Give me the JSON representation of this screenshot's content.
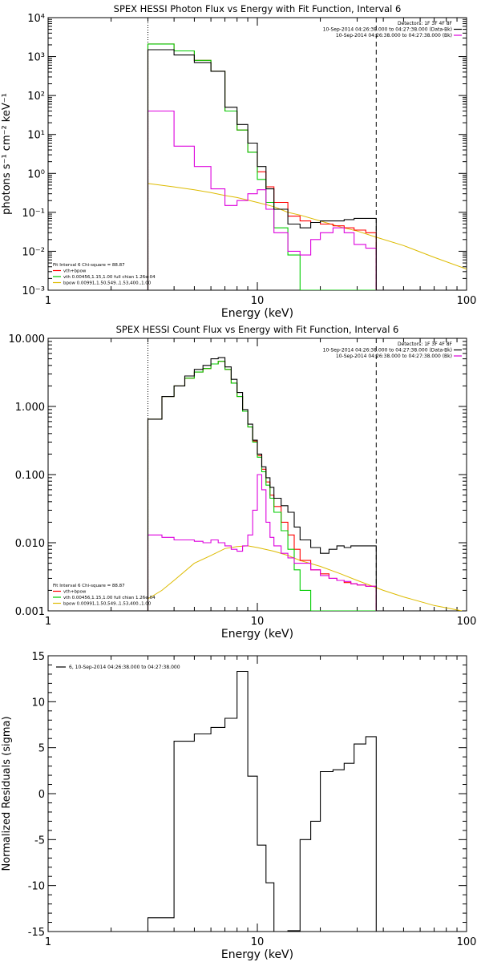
{
  "colors": {
    "data": "#000000",
    "total": "#ff0000",
    "vth": "#00cc00",
    "bpow": "#ddbb00",
    "bkg": "#dd00dd",
    "frame": "#000000"
  },
  "chart_data": [
    {
      "type": "line",
      "title": "SPEX HESSI Photon Flux vs Energy with Fit Function, Interval 6",
      "xlabel": "Energy (keV)",
      "ylabel": "photons s⁻¹ cm⁻² keV⁻¹",
      "xscale": "log",
      "yscale": "log",
      "xlim": [
        1,
        100
      ],
      "ylim": [
        0.001,
        10000
      ],
      "xticks": [
        {
          "v": 1,
          "label": "1"
        },
        {
          "v": 10,
          "label": "10"
        },
        {
          "v": 100,
          "label": "100"
        }
      ],
      "yticks": [
        {
          "v": 0.001,
          "label": "10⁻³"
        },
        {
          "v": 0.01,
          "label": "10⁻²"
        },
        {
          "v": 0.1,
          "label": "10⁻¹"
        },
        {
          "v": 1,
          "label": "10⁰"
        },
        {
          "v": 10,
          "label": "10¹"
        },
        {
          "v": 100,
          "label": "10²"
        },
        {
          "v": 1000,
          "label": "10³"
        },
        {
          "v": 10000,
          "label": "10⁴"
        }
      ],
      "legend_tr": [
        "Detectors: 1F 3F 4F 8F",
        "10-Sep-2014 04:26:38.000 to 04:27:38.000 (Data-Bk)",
        "10-Sep-2014 04:26:38.000 to 04:27:38.000 (Bk)"
      ],
      "legend_bl": [
        "Fit Interval 6   Chi-square = 88.87",
        "vth+bpow",
        "vth 0.00456,1.15,1.00  full chian 1.26e-04",
        "bpow 0.00991,1.50,549.,1.53,400.,1.00"
      ],
      "vlines": [
        3.0,
        37.0
      ],
      "edges": [
        3.0,
        4.0,
        5.0,
        6.0,
        7.0,
        8.0,
        9.0,
        10.0,
        11.0,
        12.0,
        14.0,
        16.0,
        18.0,
        20.0,
        23.0,
        26.0,
        29.0,
        33.0,
        37.0
      ],
      "series": [
        {
          "name": "Data-Bk",
          "color": "data",
          "values": [
            1500,
            1100,
            700,
            420,
            50,
            18,
            6,
            1.5,
            0.4,
            0.12,
            0.05,
            0.04,
            0.055,
            0.06,
            0.06,
            0.065,
            0.07,
            0.07
          ]
        },
        {
          "name": "vth+bpow",
          "color": "total",
          "values": [
            2100,
            1400,
            800,
            420,
            40,
            13,
            3.5,
            1.1,
            0.45,
            0.18,
            0.08,
            0.06,
            0.055,
            0.05,
            0.045,
            0.04,
            0.035,
            0.03
          ]
        },
        {
          "name": "vth",
          "color": "vth",
          "values": [
            2100,
            1400,
            800,
            420,
            40,
            13,
            3.5,
            0.7,
            0.18,
            0.04,
            0.008,
            0.0009,
            0.0009,
            0.0009,
            0.0009,
            0.0009,
            0.0009,
            0.0009
          ]
        },
        {
          "name": "Bk",
          "color": "bkg",
          "values": [
            40,
            5,
            1.5,
            0.4,
            0.15,
            0.2,
            0.3,
            0.38,
            0.12,
            0.03,
            0.01,
            0.008,
            0.02,
            0.03,
            0.04,
            0.03,
            0.015,
            0.012
          ]
        }
      ],
      "curve": {
        "name": "bpow",
        "color": "bpow",
        "x": [
          3,
          4,
          5,
          6,
          7,
          8,
          10,
          12,
          14,
          16,
          20,
          25,
          30,
          37,
          50,
          70,
          100
        ],
        "y": [
          0.55,
          0.45,
          0.38,
          0.32,
          0.27,
          0.24,
          0.18,
          0.14,
          0.1,
          0.085,
          0.06,
          0.042,
          0.033,
          0.023,
          0.014,
          0.007,
          0.0035
        ]
      }
    },
    {
      "type": "line",
      "title": "SPEX HESSI Count Flux vs Energy with Fit Function, Interval 6",
      "xlabel": "Energy (keV)",
      "ylabel": "",
      "xscale": "log",
      "yscale": "log",
      "xlim": [
        1,
        100
      ],
      "ylim": [
        0.001,
        10
      ],
      "xticks": [
        {
          "v": 1,
          "label": "1"
        },
        {
          "v": 10,
          "label": "10"
        },
        {
          "v": 100,
          "label": "100"
        }
      ],
      "yticks": [
        {
          "v": 0.001,
          "label": "0.001"
        },
        {
          "v": 0.01,
          "label": "0.010"
        },
        {
          "v": 0.1,
          "label": "0.100"
        },
        {
          "v": 1,
          "label": "1.000"
        },
        {
          "v": 10,
          "label": "10.000"
        }
      ],
      "legend_tr": [
        "Detectors: 1F 3F 4F 8F",
        "10-Sep-2014 04:26:38.000 to 04:27:38.000 (Data-Bk)",
        "10-Sep-2014 04:26:38.000 to 04:27:38.000 (Bk)"
      ],
      "legend_bl": [
        "Fit Interval 6   Chi-square = 88.87",
        "vth+bpow",
        "vth 0.00456,1.15,1.00  full chian 1.26e-04",
        "bpow 0.00991,1.50,549.,1.53,400.,1.00"
      ],
      "vlines": [
        3.0,
        37.0
      ],
      "edges": [
        3.0,
        3.5,
        4.0,
        4.5,
        5.0,
        5.5,
        6.0,
        6.5,
        7.0,
        7.5,
        8.0,
        8.5,
        9.0,
        9.5,
        10.0,
        10.5,
        11.0,
        11.5,
        12.0,
        13.0,
        14.0,
        15.0,
        16.0,
        18.0,
        20.0,
        22.0,
        24.0,
        26.0,
        28.0,
        30.0,
        33.0,
        37.0
      ],
      "series": [
        {
          "name": "Data-Bk",
          "color": "data",
          "values": [
            0.65,
            1.4,
            2.0,
            2.8,
            3.5,
            4.0,
            5.0,
            5.2,
            3.8,
            2.5,
            1.6,
            0.9,
            0.55,
            0.32,
            0.2,
            0.13,
            0.09,
            0.065,
            0.045,
            0.035,
            0.028,
            0.017,
            0.011,
            0.0085,
            0.007,
            0.008,
            0.009,
            0.0085,
            0.009,
            0.009,
            0.009
          ]
        },
        {
          "name": "vth+bpow",
          "color": "total",
          "values": [
            0.65,
            1.4,
            2.0,
            2.6,
            3.2,
            3.6,
            4.2,
            4.6,
            3.5,
            2.2,
            1.4,
            0.85,
            0.5,
            0.31,
            0.19,
            0.12,
            0.078,
            0.05,
            0.034,
            0.02,
            0.013,
            0.008,
            0.0055,
            0.004,
            0.0035,
            0.003,
            0.0028,
            0.0026,
            0.0025,
            0.0024,
            0.0023
          ]
        },
        {
          "name": "vth",
          "color": "vth",
          "values": [
            0.65,
            1.4,
            2.0,
            2.6,
            3.2,
            3.6,
            4.2,
            4.6,
            3.5,
            2.2,
            1.4,
            0.85,
            0.5,
            0.3,
            0.18,
            0.11,
            0.07,
            0.045,
            0.028,
            0.015,
            0.008,
            0.004,
            0.002,
            0.0009,
            0.0009,
            0.0009,
            0.0009,
            0.0009,
            0.0009,
            0.0009,
            0.0009
          ]
        },
        {
          "name": "Bk",
          "color": "bkg",
          "values": [
            0.013,
            0.012,
            0.011,
            0.011,
            0.0105,
            0.01,
            0.011,
            0.01,
            0.009,
            0.008,
            0.0075,
            0.009,
            0.013,
            0.03,
            0.1,
            0.06,
            0.02,
            0.012,
            0.009,
            0.007,
            0.006,
            0.005,
            0.005,
            0.004,
            0.0033,
            0.003,
            0.0028,
            0.0027,
            0.0025,
            0.0024,
            0.0023
          ]
        }
      ],
      "curve": {
        "name": "bpow",
        "color": "bpow",
        "x": [
          3,
          3.5,
          4,
          5,
          6,
          7,
          8,
          9,
          10,
          12,
          14,
          16,
          20,
          25,
          30,
          40,
          50,
          70,
          95
        ],
        "y": [
          0.0015,
          0.002,
          0.0028,
          0.005,
          0.0065,
          0.0082,
          0.0088,
          0.009,
          0.0085,
          0.0075,
          0.0065,
          0.0055,
          0.0045,
          0.0035,
          0.0028,
          0.002,
          0.0016,
          0.0012,
          0.001
        ]
      }
    },
    {
      "type": "line",
      "title": "",
      "xlabel": "Energy (keV)",
      "ylabel": "Normalized Residuals (sigma)",
      "xscale": "log",
      "yscale": "linear",
      "xlim": [
        1,
        100
      ],
      "ylim": [
        -15,
        15
      ],
      "xticks": [
        {
          "v": 1,
          "label": "1"
        },
        {
          "v": 10,
          "label": "10"
        },
        {
          "v": 100,
          "label": "100"
        }
      ],
      "yticks": [
        {
          "v": -15,
          "label": "-15"
        },
        {
          "v": -10,
          "label": "-10"
        },
        {
          "v": -5,
          "label": "-5"
        },
        {
          "v": 0,
          "label": "0"
        },
        {
          "v": 5,
          "label": "5"
        },
        {
          "v": 10,
          "label": "10"
        },
        {
          "v": 15,
          "label": "15"
        }
      ],
      "legend": "6, 10-Sep-2014 04:26:38.000 to 04:27:38.000",
      "edges": [
        3.0,
        4.0,
        5.0,
        6.0,
        7.0,
        8.0,
        9.0,
        10.0,
        11.0,
        12.0,
        14.0,
        16.0,
        18.0,
        20.0,
        23.0,
        26.0,
        29.0,
        33.0,
        37.0
      ],
      "series": [
        {
          "name": "",
          "color": "data",
          "values": [
            -13.5,
            5.7,
            6.5,
            7.2,
            8.2,
            13.3,
            1.9,
            -5.6,
            -9.7,
            -15.0,
            -14.9,
            -5.0,
            -3.0,
            2.4,
            2.6,
            3.3,
            5.4,
            6.2
          ]
        }
      ]
    }
  ]
}
